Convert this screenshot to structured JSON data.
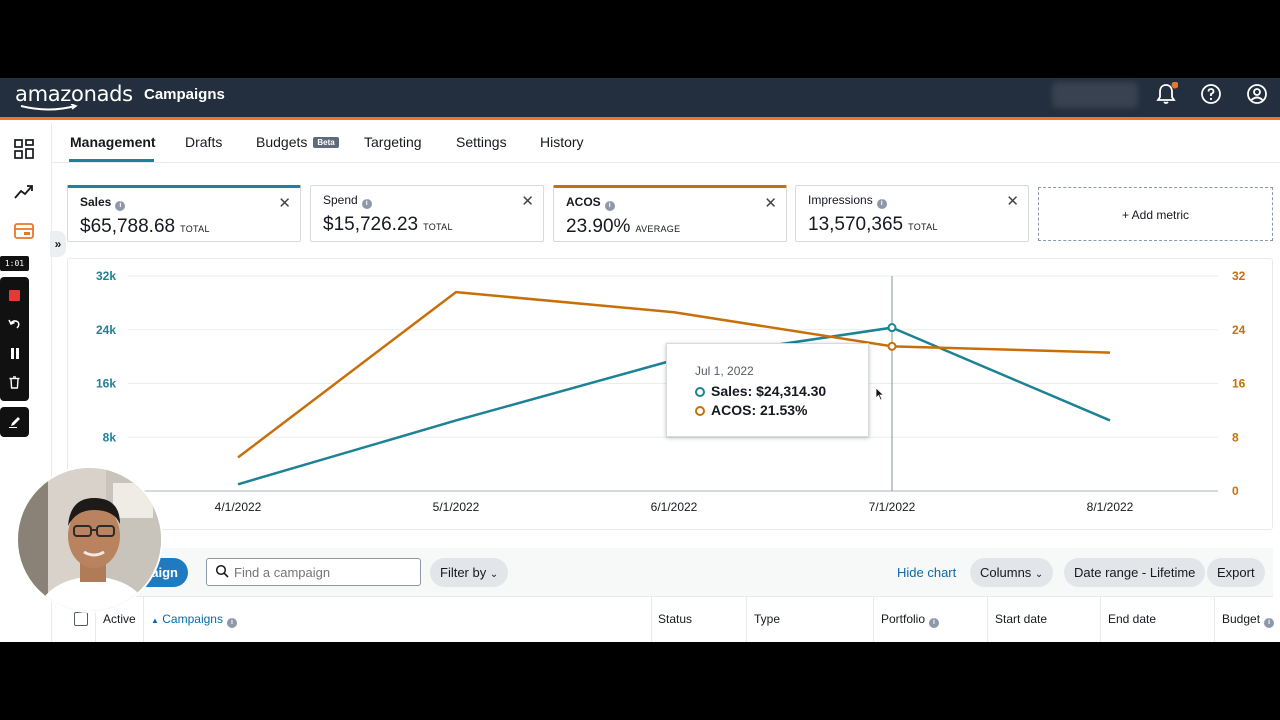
{
  "header": {
    "brand": "amazonads",
    "page_name": "Campaigns"
  },
  "tabs": [
    {
      "label": "Management"
    },
    {
      "label": "Drafts"
    },
    {
      "label": "Budgets",
      "badge": "Beta"
    },
    {
      "label": "Targeting"
    },
    {
      "label": "Settings"
    },
    {
      "label": "History"
    }
  ],
  "recorder": {
    "time": "1:01"
  },
  "metrics": [
    {
      "name": "Sales",
      "value": "$65,788.68",
      "kind": "TOTAL"
    },
    {
      "name": "Spend",
      "value": "$15,726.23",
      "kind": "TOTAL"
    },
    {
      "name": "ACOS",
      "value": "23.90%",
      "kind": "AVERAGE"
    },
    {
      "name": "Impressions",
      "value": "13,570,365",
      "kind": "TOTAL"
    }
  ],
  "add_metric_label": "Add metric",
  "chart_data": {
    "type": "line",
    "x": [
      "4/1/2022",
      "5/1/2022",
      "6/1/2022",
      "7/1/2022",
      "8/1/2022"
    ],
    "y_left": {
      "ticks": [
        "32k",
        "24k",
        "16k",
        "8k"
      ],
      "range": [
        0,
        32000
      ]
    },
    "y_right": {
      "ticks": [
        "32",
        "24",
        "16",
        "8",
        "0"
      ],
      "range": [
        0,
        32
      ]
    },
    "series": [
      {
        "name": "Sales",
        "axis": "left",
        "color": "#1d8296",
        "values": [
          1000,
          10500,
          19500,
          24314.3,
          10500
        ]
      },
      {
        "name": "ACOS",
        "axis": "right",
        "color": "#c7700a",
        "values": [
          5,
          29.6,
          26.6,
          21.53,
          20.6
        ]
      }
    ],
    "grid": true,
    "hover_index": 3
  },
  "tooltip": {
    "date": "Jul 1, 2022",
    "sales": "Sales: $24,314.30",
    "acos": "ACOS: 21.53%"
  },
  "toolbar": {
    "create_label": "aign",
    "search_placeholder": "Find a campaign",
    "filter_label": "Filter by",
    "hide_chart": "Hide chart",
    "columns": "Columns",
    "date_range": "Date range - Lifetime",
    "export": "Export"
  },
  "table_headers": [
    "Active",
    "Campaigns",
    "Status",
    "Type",
    "Portfolio",
    "Start date",
    "End date",
    "Budget"
  ]
}
